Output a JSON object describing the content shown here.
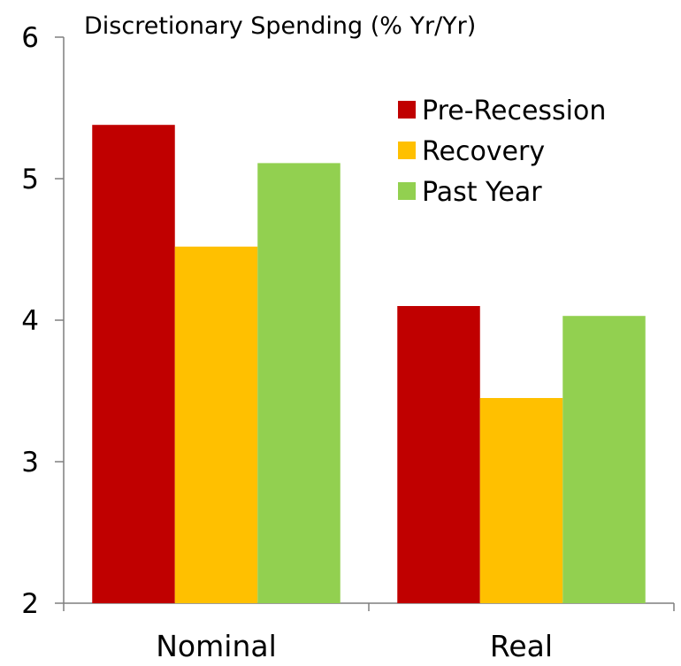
{
  "chart_data": {
    "type": "bar",
    "title": "Discretionary Spending (% Yr/Yr)",
    "xlabel": "",
    "ylabel": "",
    "ylim": [
      2,
      6
    ],
    "yticks": [
      2,
      3,
      4,
      5,
      6
    ],
    "categories": [
      "Nominal",
      "Real"
    ],
    "series": [
      {
        "name": "Pre-Recession",
        "color": "#c00000",
        "values": [
          5.38,
          4.1
        ]
      },
      {
        "name": "Recovery",
        "color": "#ffc000",
        "values": [
          4.52,
          3.45
        ]
      },
      {
        "name": "Past Year",
        "color": "#92d050",
        "values": [
          5.11,
          4.03
        ]
      }
    ],
    "grid": false,
    "legend_position": "top-right"
  }
}
